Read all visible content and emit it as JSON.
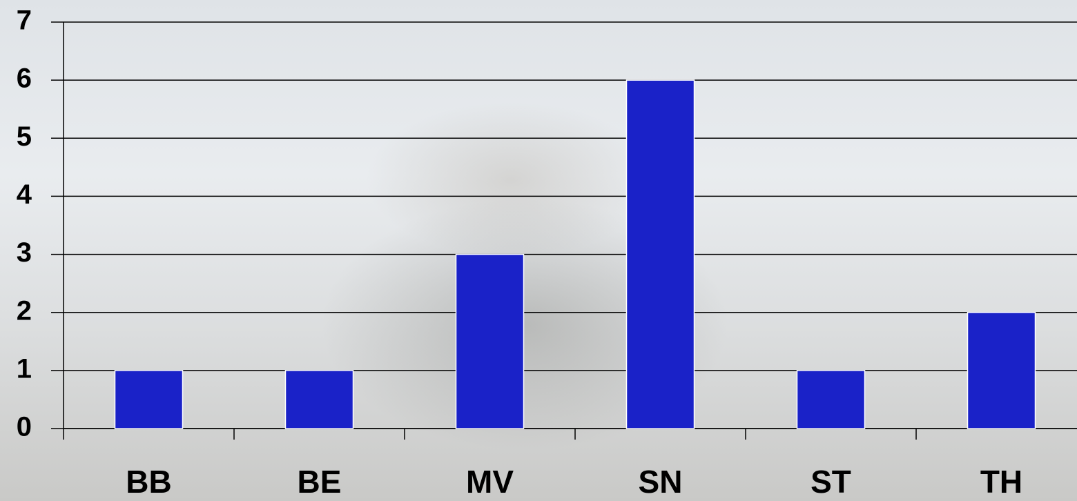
{
  "chart_data": {
    "type": "bar",
    "categories": [
      "BB",
      "BE",
      "MV",
      "SN",
      "ST",
      "TH"
    ],
    "values": [
      1,
      1,
      3,
      6,
      1,
      2
    ],
    "color": "#1a22c8",
    "ylim": [
      0,
      7
    ],
    "yticks": [
      0,
      1,
      2,
      3,
      4,
      5,
      6,
      7
    ],
    "grid": true
  }
}
